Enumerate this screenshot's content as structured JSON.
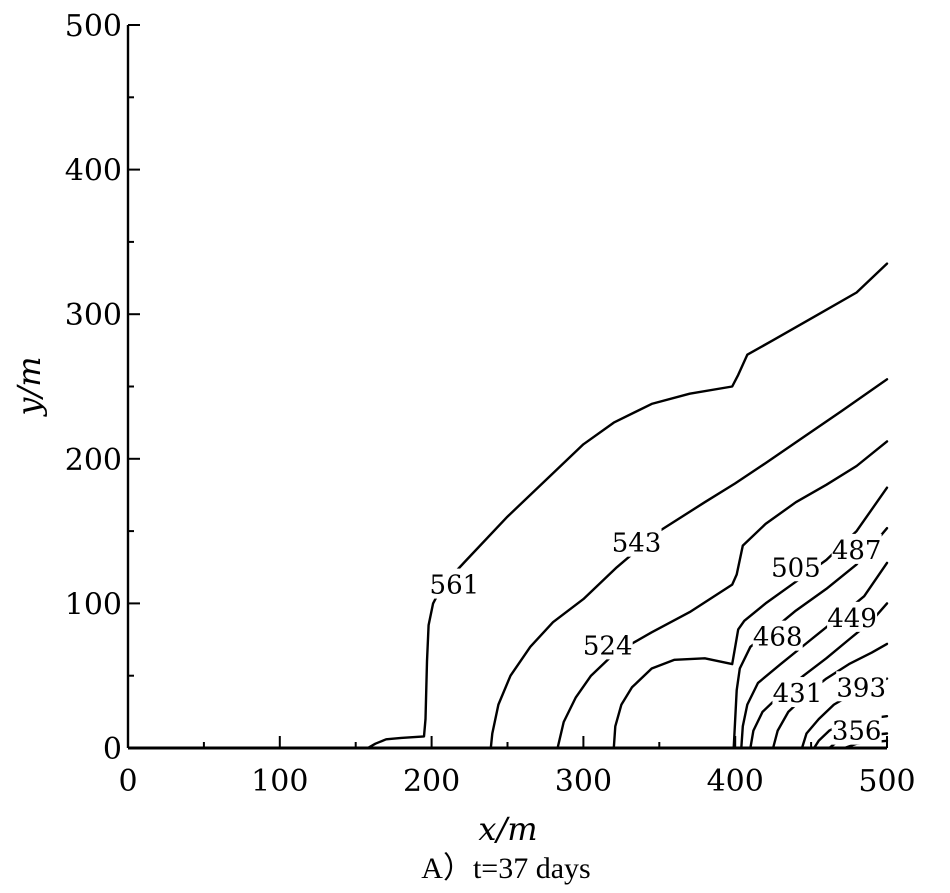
{
  "chart_data": {
    "type": "contour",
    "title": "",
    "caption": "A）t=37 days",
    "xlabel": "x/m",
    "ylabel": "y/m",
    "xlim": [
      0,
      500
    ],
    "ylim": [
      0,
      500
    ],
    "xticks": [
      0,
      100,
      200,
      300,
      400,
      500
    ],
    "yticks": [
      0,
      100,
      200,
      300,
      400,
      500
    ],
    "grid": false,
    "contours": [
      {
        "level": "561",
        "label_at": [
          215,
          113
        ],
        "points": [
          [
            158,
            0
          ],
          [
            163,
            3
          ],
          [
            170,
            6
          ],
          [
            180,
            7
          ],
          [
            195,
            8
          ],
          [
            196,
            20
          ],
          [
            197,
            60
          ],
          [
            198,
            85
          ],
          [
            201,
            100
          ],
          [
            207,
            112
          ],
          [
            223,
            130
          ],
          [
            250,
            160
          ],
          [
            280,
            190
          ],
          [
            300,
            210
          ],
          [
            320,
            225
          ],
          [
            345,
            238
          ],
          [
            370,
            245
          ],
          [
            398,
            250
          ],
          [
            402,
            258
          ],
          [
            408,
            272
          ],
          [
            425,
            282
          ],
          [
            455,
            300
          ],
          [
            480,
            315
          ],
          [
            500,
            335
          ]
        ]
      },
      {
        "level": "543",
        "label_at": [
          335,
          142
        ],
        "points": [
          [
            239,
            0
          ],
          [
            240,
            10
          ],
          [
            244,
            30
          ],
          [
            252,
            50
          ],
          [
            265,
            70
          ],
          [
            280,
            87
          ],
          [
            300,
            103
          ],
          [
            322,
            125
          ],
          [
            350,
            150
          ],
          [
            380,
            170
          ],
          [
            400,
            183
          ],
          [
            420,
            197
          ],
          [
            445,
            215
          ],
          [
            470,
            233
          ],
          [
            500,
            255
          ]
        ]
      },
      {
        "level": "524",
        "label_at": [
          316,
          71
        ],
        "points": [
          [
            283,
            0
          ],
          [
            287,
            18
          ],
          [
            295,
            35
          ],
          [
            305,
            50
          ],
          [
            320,
            65
          ],
          [
            345,
            80
          ],
          [
            370,
            94
          ],
          [
            398,
            113
          ],
          [
            401,
            120
          ],
          [
            405,
            140
          ],
          [
            420,
            155
          ],
          [
            440,
            170
          ],
          [
            460,
            182
          ],
          [
            480,
            195
          ],
          [
            500,
            212
          ]
        ]
      },
      {
        "level": "505",
        "label_at": [
          440,
          125
        ],
        "points": [
          [
            320,
            0
          ],
          [
            321,
            15
          ],
          [
            325,
            30
          ],
          [
            332,
            42
          ],
          [
            345,
            55
          ],
          [
            360,
            61
          ],
          [
            380,
            62
          ],
          [
            398,
            58
          ],
          [
            400,
            70
          ],
          [
            402,
            82
          ],
          [
            406,
            88
          ],
          [
            420,
            100
          ],
          [
            440,
            115
          ],
          [
            460,
            130
          ],
          [
            480,
            150
          ],
          [
            500,
            180
          ]
        ]
      },
      {
        "level": "487",
        "label_at": [
          480,
          137
        ],
        "points": [
          [
            399,
            0
          ],
          [
            400,
            20
          ],
          [
            401,
            40
          ],
          [
            403,
            55
          ],
          [
            410,
            70
          ],
          [
            425,
            82
          ],
          [
            440,
            95
          ],
          [
            460,
            110
          ],
          [
            480,
            127
          ],
          [
            500,
            152
          ]
        ]
      },
      {
        "level": "468",
        "label_at": [
          428,
          77
        ],
        "points": [
          [
            404,
            0
          ],
          [
            405,
            15
          ],
          [
            408,
            30
          ],
          [
            415,
            45
          ],
          [
            430,
            58
          ],
          [
            450,
            75
          ],
          [
            470,
            92
          ],
          [
            485,
            105
          ],
          [
            500,
            128
          ]
        ]
      },
      {
        "level": "449",
        "label_at": [
          477,
          90
        ],
        "points": [
          [
            410,
            0
          ],
          [
            412,
            12
          ],
          [
            418,
            25
          ],
          [
            430,
            37
          ],
          [
            445,
            50
          ],
          [
            460,
            62
          ],
          [
            475,
            75
          ],
          [
            490,
            88
          ],
          [
            500,
            100
          ]
        ]
      },
      {
        "level": "431",
        "label_at": [
          441,
          38
        ],
        "points": [
          [
            425,
            0
          ],
          [
            428,
            12
          ],
          [
            435,
            25
          ],
          [
            448,
            38
          ],
          [
            460,
            48
          ],
          [
            475,
            58
          ],
          [
            490,
            66
          ],
          [
            500,
            72
          ]
        ]
      },
      {
        "level": "393",
        "label_at": [
          483,
          42
        ],
        "points": [
          [
            444,
            0
          ],
          [
            447,
            10
          ],
          [
            455,
            20
          ],
          [
            465,
            30
          ],
          [
            478,
            38
          ],
          [
            490,
            44
          ],
          [
            500,
            48
          ]
        ]
      },
      {
        "level": "356",
        "label_at": [
          480,
          12
        ],
        "points": [
          [
            452,
            0
          ],
          [
            455,
            5
          ],
          [
            462,
            12
          ],
          [
            472,
            17
          ],
          [
            485,
            20
          ],
          [
            500,
            22
          ]
        ]
      },
      {
        "level": "",
        "points": [
          [
            462,
            0
          ],
          [
            468,
            5
          ],
          [
            478,
            8
          ],
          [
            490,
            9
          ],
          [
            500,
            10
          ]
        ]
      },
      {
        "level": "",
        "points": [
          [
            472,
            0
          ],
          [
            480,
            3
          ],
          [
            490,
            4
          ],
          [
            500,
            5
          ]
        ]
      }
    ]
  }
}
